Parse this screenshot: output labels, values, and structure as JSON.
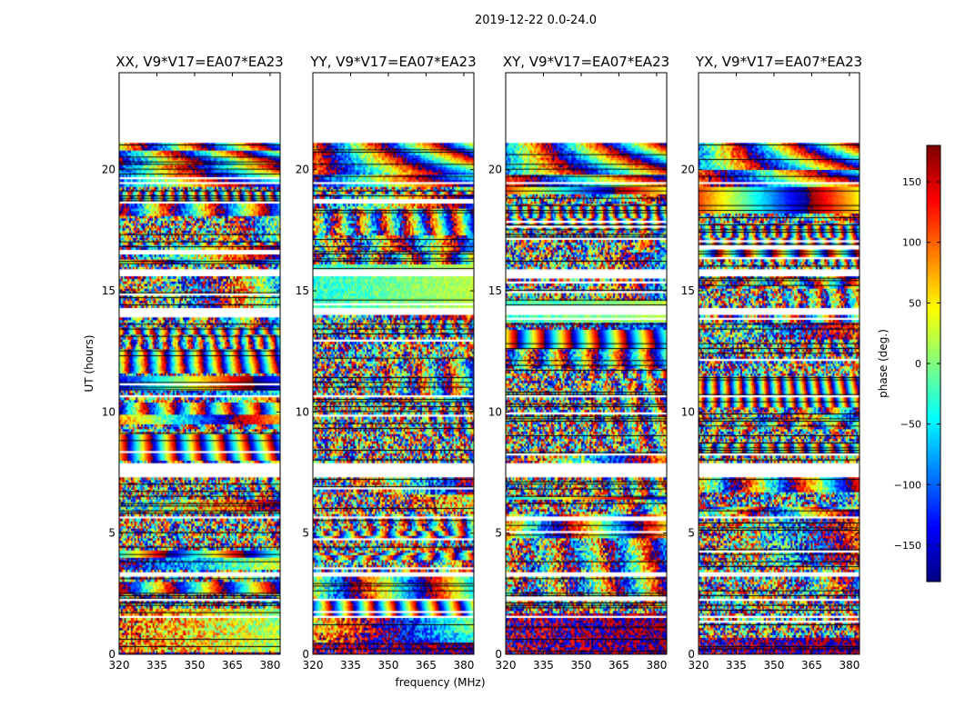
{
  "chart_data": {
    "type": "heatmap",
    "suptitle": "2019-12-22 0.0-24.0",
    "xlabel": "frequency (MHz)",
    "ylabel": "UT (hours)",
    "xlim": [
      320,
      384
    ],
    "ylim": [
      0,
      24
    ],
    "xticks": [
      "320",
      "335",
      "350",
      "365",
      "380"
    ],
    "xtick_values": [
      320,
      335,
      350,
      365,
      380
    ],
    "yticks": [
      "0",
      "5",
      "10",
      "15",
      "20"
    ],
    "ytick_values": [
      0,
      5,
      10,
      15,
      20
    ],
    "data_time_range": [
      0,
      21.1
    ],
    "time_gaps": [
      [
        1.5,
        1.6
      ],
      [
        2.15,
        2.25
      ],
      [
        3.15,
        3.4
      ],
      [
        5.5,
        5.6
      ],
      [
        7.2,
        7.8
      ],
      [
        10.5,
        10.6
      ],
      [
        13.9,
        14.2
      ],
      [
        15.5,
        15.8
      ],
      [
        19.4,
        19.5
      ]
    ],
    "panels": [
      {
        "title": "XX, V9*V17=EA07*EA23"
      },
      {
        "title": "YY, V9*V17=EA07*EA23"
      },
      {
        "title": "XY, V9*V17=EA07*EA23"
      },
      {
        "title": "YX, V9*V17=EA07*EA23"
      }
    ],
    "colorbar": {
      "label": "phase (deg.)",
      "range": [
        -180,
        180
      ],
      "colormap": "jet",
      "ticks": [
        "−150",
        "−100",
        "−50",
        "0",
        "50",
        "100",
        "150"
      ],
      "tick_values": [
        -150,
        -100,
        -50,
        0,
        50,
        100,
        150
      ]
    }
  }
}
